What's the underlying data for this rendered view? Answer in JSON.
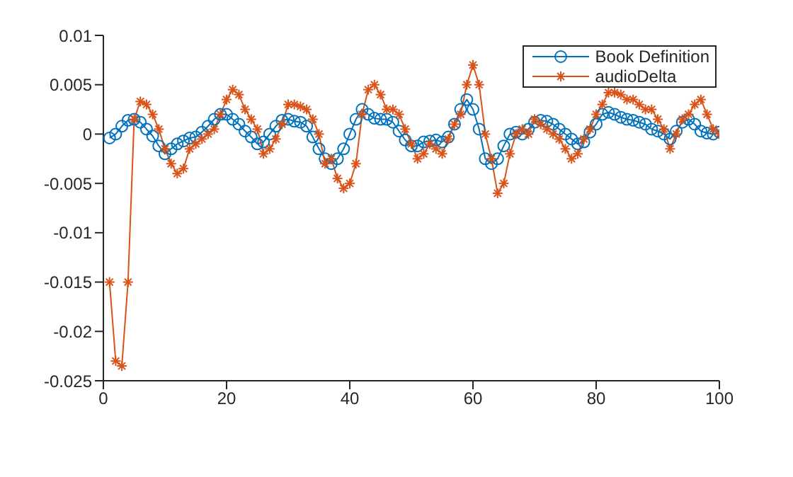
{
  "chart_data": {
    "type": "line",
    "x": [
      1,
      2,
      3,
      4,
      5,
      6,
      7,
      8,
      9,
      10,
      11,
      12,
      13,
      14,
      15,
      16,
      17,
      18,
      19,
      20,
      21,
      22,
      23,
      24,
      25,
      26,
      27,
      28,
      29,
      30,
      31,
      32,
      33,
      34,
      35,
      36,
      37,
      38,
      39,
      40,
      41,
      42,
      43,
      44,
      45,
      46,
      47,
      48,
      49,
      50,
      51,
      52,
      53,
      54,
      55,
      56,
      57,
      58,
      59,
      60,
      61,
      62,
      63,
      64,
      65,
      66,
      67,
      68,
      69,
      70,
      71,
      72,
      73,
      74,
      75,
      76,
      77,
      78,
      79,
      80,
      81,
      82,
      83,
      84,
      85,
      86,
      87,
      88,
      89,
      90,
      91,
      92,
      93,
      94,
      95,
      96,
      97,
      98,
      99,
      100
    ],
    "series": [
      {
        "name": "Book Definition",
        "color": "#0072bd",
        "marker": "circle",
        "values": [
          -0.0004,
          0,
          0.0008,
          0.0014,
          0.0015,
          0.0012,
          0.0005,
          -0.0002,
          -0.0012,
          -0.002,
          -0.0015,
          -0.001,
          -0.0007,
          -0.0004,
          -0.0003,
          0.0002,
          0.0008,
          0.0015,
          0.002,
          0.002,
          0.0015,
          0.001,
          0.0003,
          -0.0003,
          -0.001,
          -0.0008,
          0,
          0.0008,
          0.0014,
          0.0015,
          0.0013,
          0.0012,
          0.0008,
          -0.0003,
          -0.0015,
          -0.0025,
          -0.003,
          -0.0025,
          -0.0015,
          0,
          0.0015,
          0.0025,
          0.002,
          0.0016,
          0.0015,
          0.0015,
          0.0012,
          0.0003,
          -0.0006,
          -0.0012,
          -0.0012,
          -0.0008,
          -0.0007,
          -0.0006,
          -0.0008,
          -0.0003,
          0.001,
          0.0025,
          0.0035,
          0.0025,
          0.0005,
          -0.0025,
          -0.003,
          -0.0025,
          -0.0012,
          0,
          0.0002,
          0,
          0.0005,
          0.0012,
          0.0014,
          0.0013,
          0.001,
          0.0005,
          0,
          -0.0005,
          -0.001,
          -0.0008,
          0.0002,
          0.001,
          0.002,
          0.0022,
          0.002,
          0.0017,
          0.0015,
          0.0014,
          0.0012,
          0.001,
          0.0005,
          0.0003,
          0,
          -0.0005,
          0.0003,
          0.0012,
          0.0015,
          0.001,
          0.0003,
          0.0001,
          0,
          0.0002
        ]
      },
      {
        "name": "audioDelta",
        "color": "#d95319",
        "marker": "cross",
        "values": [
          -0.015,
          -0.023,
          -0.0235,
          -0.015,
          0.0015,
          0.0033,
          0.003,
          0.002,
          0.0005,
          -0.0015,
          -0.003,
          -0.004,
          -0.0035,
          -0.0015,
          -0.001,
          -0.0005,
          0,
          0.0005,
          0.002,
          0.0035,
          0.0045,
          0.004,
          0.0025,
          0.0015,
          0.0005,
          -0.002,
          -0.0015,
          -0.0005,
          0.001,
          0.003,
          0.003,
          0.0028,
          0.0025,
          0.0015,
          0,
          -0.003,
          -0.0025,
          -0.0045,
          -0.0055,
          -0.005,
          -0.003,
          0.002,
          0.0045,
          0.005,
          0.004,
          0.0025,
          0.0025,
          0.002,
          0.0005,
          -0.001,
          -0.0025,
          -0.002,
          -0.001,
          -0.0015,
          -0.002,
          -0.0005,
          0.001,
          0.002,
          0.005,
          0.007,
          0.005,
          0,
          -0.0025,
          -0.006,
          -0.005,
          -0.002,
          0,
          0.0005,
          0,
          0.0015,
          0.001,
          0.0005,
          0,
          -0.0005,
          -0.0015,
          -0.0025,
          -0.002,
          -0.0005,
          0.0005,
          0.002,
          0.003,
          0.0042,
          0.0042,
          0.004,
          0.0035,
          0.0035,
          0.003,
          0.0025,
          0.0025,
          0.0015,
          0.0005,
          -0.0015,
          0,
          0.0015,
          0.002,
          0.003,
          0.0035,
          0.002,
          0.0005,
          0
        ]
      }
    ],
    "xlim": [
      0,
      100
    ],
    "xticks": [
      0,
      20,
      40,
      60,
      80,
      100
    ],
    "ylim": [
      -0.025,
      0.01
    ],
    "yticks": [
      -0.025,
      -0.02,
      -0.015,
      -0.01,
      -0.005,
      0,
      0.005,
      0.01
    ],
    "grid": false,
    "legend": "top right",
    "line_style": "solid"
  }
}
